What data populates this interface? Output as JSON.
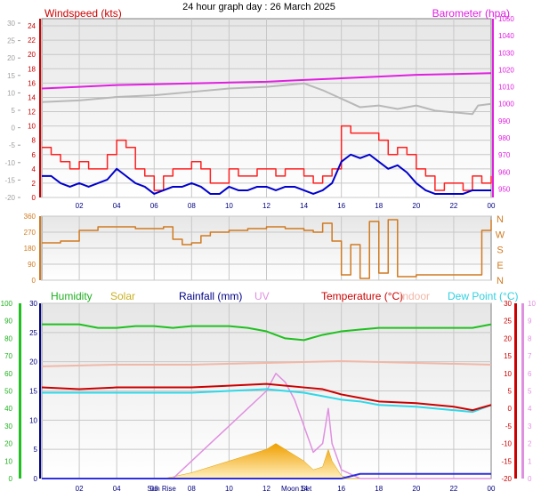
{
  "header": {
    "title": "24 hour graph day : 26 March 2025"
  },
  "colors": {
    "windspeed": "#cc0000",
    "barometer": "#e020e0",
    "gust": "#ff2020",
    "avg": "#0000cc",
    "direction": "#d07a20",
    "humidity": "#20c020",
    "solar": "#d0b020",
    "rainfall": "#000088",
    "uv": "#e090e0",
    "temperature": "#cc0000",
    "indoor": "#f0b8a8",
    "dewpoint": "#30d8e8",
    "grid": "#c8c8c8",
    "panel_top": "#e8e8e8",
    "panel_bottom": "#ffffff"
  },
  "chart_data": [
    {
      "type": "line",
      "panel": "wind_barometer",
      "x_ticks": [
        "02",
        "04",
        "06",
        "08",
        "10",
        "12",
        "14",
        "16",
        "18",
        "20",
        "22",
        "00"
      ],
      "left_label": "Windspeed (kts)",
      "right_label": "Barometer (hpa)",
      "y_left_ticks": [
        0,
        2,
        4,
        6,
        8,
        10,
        12,
        14,
        16,
        18,
        20,
        22,
        24
      ],
      "y_left_range": [
        0,
        25
      ],
      "y_outer_ticks": [
        -20,
        -15,
        -10,
        -5,
        0,
        5,
        10,
        15,
        20,
        25,
        30
      ],
      "y_right_ticks": [
        950,
        960,
        970,
        980,
        990,
        1000,
        1010,
        1020,
        1030,
        1040,
        1050
      ],
      "y_right_range": [
        945,
        1050
      ],
      "barometer": {
        "x": [
          0,
          2,
          4,
          6,
          8,
          10,
          12,
          14,
          16,
          18,
          20,
          22,
          24
        ],
        "values": [
          1009,
          1010,
          1011,
          1011.5,
          1012,
          1012.5,
          1013,
          1014,
          1015,
          1016,
          1017,
          1017.5,
          1018
        ]
      },
      "gray_trace": {
        "x": [
          0,
          2,
          4,
          6,
          8,
          10,
          12,
          14,
          15,
          16,
          17,
          18,
          19,
          20,
          21,
          22,
          23,
          23.3,
          24
        ],
        "values": [
          1001,
          1002,
          1004,
          1005,
          1007,
          1009,
          1010,
          1012,
          1008,
          1003,
          998,
          999,
          997,
          999,
          996,
          995,
          994,
          999,
          1000
        ]
      },
      "gust": {
        "x": [
          0,
          0.5,
          1,
          1.5,
          2,
          2.5,
          3,
          3.5,
          4,
          4.5,
          5,
          5.5,
          6,
          6.5,
          7,
          7.5,
          8,
          8.5,
          9,
          9.5,
          10,
          10.5,
          11,
          11.5,
          12,
          12.5,
          13,
          13.5,
          14,
          14.5,
          15,
          15.5,
          16,
          16.5,
          17,
          17.5,
          18,
          18.5,
          19,
          19.5,
          20,
          20.5,
          21,
          21.5,
          22,
          22.5,
          23,
          23.5,
          24
        ],
        "values": [
          7,
          6,
          5,
          4,
          5,
          4,
          4,
          6,
          8,
          7,
          4,
          3,
          1,
          3,
          4,
          4,
          5,
          4,
          2,
          2,
          4,
          3,
          3,
          4,
          4,
          3,
          4,
          4,
          3,
          2,
          3,
          4,
          10,
          9,
          9,
          9,
          8,
          6,
          7,
          6,
          4,
          3,
          1,
          2,
          2,
          1,
          3,
          2,
          3
        ]
      },
      "avg": {
        "x": [
          0,
          0.5,
          1,
          1.5,
          2,
          2.5,
          3,
          3.5,
          4,
          4.5,
          5,
          5.5,
          6,
          6.5,
          7,
          7.5,
          8,
          8.5,
          9,
          9.5,
          10,
          10.5,
          11,
          11.5,
          12,
          12.5,
          13,
          13.5,
          14,
          14.5,
          15,
          15.5,
          16,
          16.5,
          17,
          17.5,
          18,
          18.5,
          19,
          19.5,
          20,
          20.5,
          21,
          21.5,
          22,
          22.5,
          23,
          23.5,
          24
        ],
        "values": [
          3,
          3,
          2,
          1.5,
          2,
          1.5,
          2,
          2.5,
          4,
          3,
          2,
          1.5,
          0.5,
          1,
          1.5,
          1.5,
          2,
          1.5,
          0.5,
          0.5,
          1.5,
          1,
          1,
          1.5,
          1.5,
          1,
          1.5,
          1.5,
          1,
          0.5,
          1,
          2,
          5,
          6,
          5.5,
          6,
          5,
          4,
          4.5,
          3.5,
          2,
          1,
          0.5,
          0.5,
          0.5,
          0.5,
          1,
          1,
          1
        ]
      }
    },
    {
      "type": "line",
      "panel": "wind_direction",
      "y_ticks": [
        0,
        90,
        180,
        270,
        360
      ],
      "y_range": [
        0,
        360
      ],
      "compass": [
        "N",
        "W",
        "S",
        "E",
        "N"
      ],
      "x": [
        0,
        1,
        2,
        3,
        4,
        5,
        6,
        6.5,
        7,
        7.5,
        8,
        8.5,
        9,
        10,
        11,
        12,
        13,
        14,
        14.5,
        15,
        15.5,
        16,
        16.5,
        17,
        17.5,
        18,
        18.5,
        19,
        20,
        21,
        22,
        23,
        23.5,
        24
      ],
      "values": [
        210,
        220,
        280,
        300,
        300,
        290,
        290,
        300,
        230,
        200,
        210,
        250,
        270,
        280,
        290,
        300,
        290,
        280,
        270,
        320,
        220,
        30,
        200,
        10,
        330,
        40,
        340,
        20,
        30,
        30,
        30,
        30,
        280,
        340
      ]
    },
    {
      "type": "line",
      "panel": "environment",
      "legend": [
        "Humidity",
        "Solar",
        "Rainfall (mm)",
        "UV",
        "Temperature (°C)",
        "Indoor",
        "Dew Point (°C)"
      ],
      "y_left_ticks": [
        0,
        5,
        10,
        15,
        20,
        25,
        30
      ],
      "y_left_range": [
        0,
        30
      ],
      "humidity_ticks": [
        0,
        10,
        20,
        30,
        40,
        50,
        60,
        70,
        80,
        90,
        100
      ],
      "temperature_ticks": [
        -20,
        -15,
        -10,
        -5,
        0,
        5,
        10,
        15,
        20,
        25,
        30
      ],
      "temperature_range": [
        -20,
        30
      ],
      "uv_ticks": [
        0,
        1,
        2,
        3,
        4,
        5,
        6,
        7,
        8,
        9,
        10
      ],
      "x_ticks": [
        "02",
        "04",
        "06",
        "08",
        "10",
        "12",
        "14",
        "16",
        "18",
        "20",
        "22",
        "00"
      ],
      "event_labels": [
        "Sun Rise",
        "Moon Set"
      ],
      "humidity": {
        "x": [
          0,
          1,
          2,
          3,
          4,
          5,
          6,
          7,
          8,
          9,
          10,
          11,
          12,
          13,
          14,
          15,
          16,
          17,
          18,
          19,
          20,
          21,
          22,
          23,
          24
        ],
        "values": [
          88,
          88,
          88,
          86,
          86,
          87,
          87,
          86,
          87,
          87,
          87,
          86,
          84,
          80,
          79,
          82,
          84,
          85,
          86,
          86,
          86,
          86,
          86,
          86,
          88
        ]
      },
      "temperature": {
        "x": [
          0,
          2,
          4,
          6,
          8,
          10,
          12,
          14,
          15,
          16,
          17,
          18,
          20,
          21,
          22,
          23,
          24
        ],
        "values": [
          6,
          5.5,
          6,
          6,
          6,
          6.5,
          7,
          6,
          5.5,
          4,
          3,
          2,
          1.5,
          1,
          0.5,
          -0.5,
          1
        ]
      },
      "dewpoint": {
        "x": [
          0,
          2,
          4,
          6,
          8,
          10,
          12,
          14,
          15,
          16,
          17,
          18,
          20,
          21,
          22,
          23,
          24
        ],
        "values": [
          4.5,
          4.5,
          4.5,
          4.5,
          4.5,
          5,
          5.5,
          4.5,
          3.5,
          2.5,
          2,
          1,
          0.5,
          0,
          -0.5,
          -1,
          1
        ]
      },
      "indoor": {
        "x": [
          0,
          4,
          8,
          12,
          16,
          20,
          24
        ],
        "values": [
          12,
          12.5,
          12.5,
          13,
          13.5,
          13,
          12.5
        ]
      },
      "solar": {
        "x": [
          0,
          6.5,
          7,
          8,
          9,
          10,
          11,
          12,
          12.5,
          13,
          13.5,
          14,
          14.5,
          15,
          15.3,
          15.5,
          16,
          16.5,
          17,
          24
        ],
        "values": [
          0,
          0,
          0.3,
          1,
          2,
          3,
          4,
          5,
          6,
          5,
          4,
          3,
          1.5,
          2,
          5,
          3,
          0.5,
          0,
          0,
          0
        ]
      },
      "uv": {
        "x": [
          0,
          7,
          8,
          9,
          10,
          11,
          12,
          12.5,
          13,
          13.5,
          14,
          14.5,
          15,
          15.3,
          15.5,
          16,
          17,
          24
        ],
        "values": [
          0,
          0,
          1,
          2,
          3,
          4,
          5,
          6,
          5.5,
          4.5,
          3,
          1.5,
          2,
          4,
          2,
          0.5,
          0,
          0
        ]
      },
      "rainfall": {
        "x": [
          0,
          16,
          17,
          24
        ],
        "values": [
          0,
          0,
          0.8,
          0.8
        ]
      }
    }
  ]
}
